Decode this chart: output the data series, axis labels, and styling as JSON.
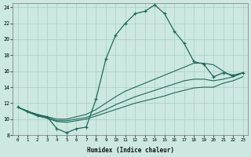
{
  "xlabel": "Humidex (Indice chaleur)",
  "bg_color": "#cce8e0",
  "grid_color": "#a8cfc8",
  "line_color": "#1a6b5a",
  "xlim": [
    -0.5,
    23.5
  ],
  "ylim": [
    8,
    24.5
  ],
  "xticks": [
    0,
    1,
    2,
    3,
    4,
    5,
    6,
    7,
    8,
    9,
    10,
    11,
    12,
    13,
    14,
    15,
    16,
    17,
    18,
    19,
    20,
    21,
    22,
    23
  ],
  "yticks": [
    8,
    10,
    12,
    14,
    16,
    18,
    20,
    22,
    24
  ],
  "curve1_x": [
    0,
    1,
    2,
    3,
    4,
    5,
    6,
    7,
    8,
    9,
    10,
    11,
    12,
    13,
    14,
    15,
    16,
    17,
    18,
    19,
    20,
    21,
    22,
    23
  ],
  "curve1_y": [
    11.5,
    11.0,
    10.5,
    10.3,
    8.8,
    8.3,
    8.8,
    9.0,
    12.5,
    17.5,
    20.5,
    22.0,
    23.2,
    23.5,
    24.3,
    23.2,
    21.0,
    19.5,
    17.2,
    16.9,
    15.3,
    15.8,
    15.5,
    15.8
  ],
  "line1_x": [
    0,
    1,
    2,
    3,
    4,
    5,
    6,
    7,
    8,
    9,
    10,
    11,
    12,
    13,
    14,
    15,
    16,
    17,
    18,
    19,
    20,
    21,
    22,
    23
  ],
  "line1_y": [
    11.5,
    11.0,
    10.6,
    10.3,
    10.0,
    10.0,
    10.3,
    10.6,
    11.2,
    12.0,
    12.8,
    13.5,
    14.0,
    14.5,
    15.0,
    15.5,
    16.0,
    16.5,
    17.0,
    17.0,
    16.8,
    16.0,
    15.3,
    15.8
  ],
  "line2_x": [
    0,
    1,
    2,
    3,
    4,
    5,
    6,
    7,
    8,
    9,
    10,
    11,
    12,
    13,
    14,
    15,
    16,
    17,
    18,
    19,
    20,
    21,
    22,
    23
  ],
  "line2_y": [
    11.5,
    11.0,
    10.5,
    10.2,
    9.8,
    9.8,
    10.0,
    10.2,
    10.7,
    11.2,
    11.8,
    12.3,
    12.8,
    13.2,
    13.6,
    14.0,
    14.4,
    14.8,
    15.0,
    15.0,
    14.8,
    15.0,
    15.3,
    15.8
  ],
  "line3_x": [
    0,
    1,
    2,
    3,
    4,
    5,
    6,
    7,
    8,
    9,
    10,
    11,
    12,
    13,
    14,
    15,
    16,
    17,
    18,
    19,
    20,
    21,
    22,
    23
  ],
  "line3_y": [
    11.5,
    10.9,
    10.4,
    10.1,
    9.7,
    9.6,
    9.8,
    10.0,
    10.4,
    10.8,
    11.2,
    11.6,
    12.0,
    12.3,
    12.6,
    12.9,
    13.3,
    13.6,
    13.9,
    14.0,
    14.0,
    14.5,
    14.8,
    15.3
  ]
}
